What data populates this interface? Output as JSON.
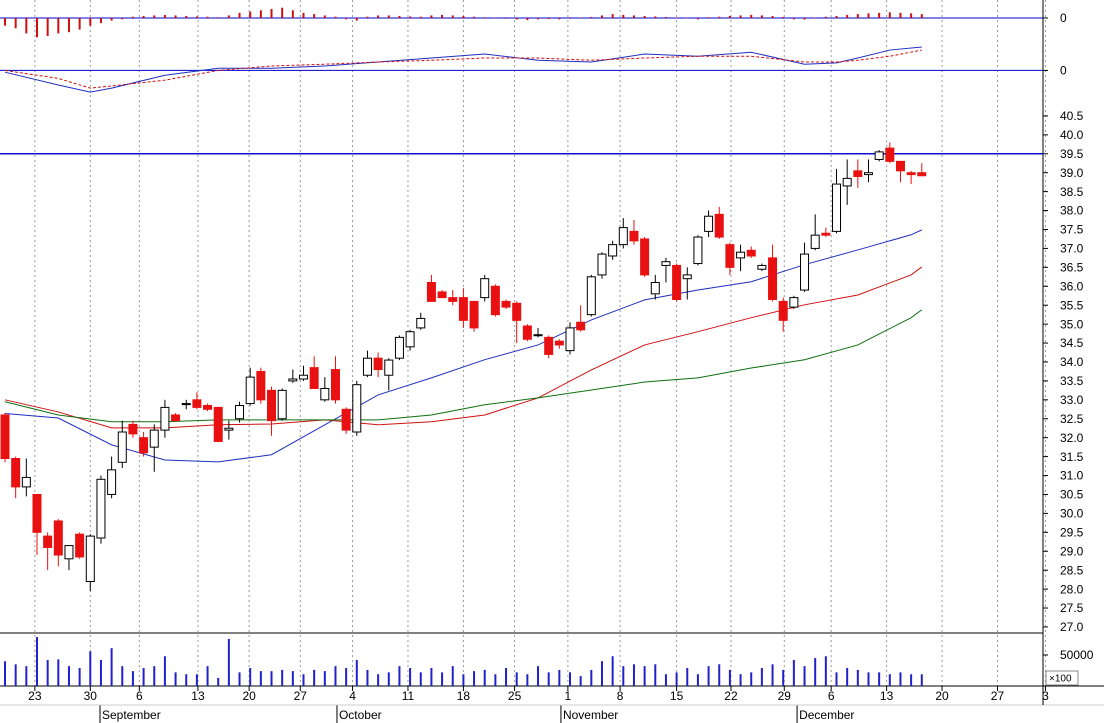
{
  "chart_data": [
    {
      "type": "bar",
      "color": "#cc1010",
      "ylim": [
        -0.7,
        0.7
      ],
      "yticks": [
        0
      ],
      "zero_line_color": "#0000cc",
      "values": [
        -0.3,
        -0.4,
        -0.6,
        -0.75,
        -0.7,
        -0.6,
        -0.55,
        -0.45,
        -0.3,
        -0.2,
        -0.1,
        -0.05,
        0.05,
        0.08,
        0.1,
        0.12,
        0.1,
        0.08,
        0.06,
        0.05,
        0.03,
        0.1,
        0.2,
        0.25,
        0.3,
        0.35,
        0.4,
        0.3,
        0.2,
        0.15,
        0.1,
        0.05,
        -0.05,
        -0.1,
        0.05,
        0.1,
        0.1,
        0.08,
        0.06,
        0.05,
        0.1,
        0.12,
        0.1,
        0.08,
        0.05,
        0.03,
        0.02,
        -0.03,
        -0.06,
        -0.08,
        -0.05,
        -0.04,
        -0.05,
        -0.03,
        0.02,
        0.04,
        0.1,
        0.15,
        0.12,
        0.1,
        0.08,
        0.06,
        0.04,
        0.02,
        -0.02,
        -0.05,
        0.03,
        0.05,
        0.08,
        0.1,
        0.12,
        0.1,
        0.08,
        0.04,
        -0.05,
        -0.06,
        0.02,
        0.05,
        0.08,
        0.12,
        0.15,
        0.18,
        0.2,
        0.22,
        0.2,
        0.18,
        0.15
      ]
    },
    {
      "type": "line",
      "ylim": [
        -0.6,
        0.8
      ],
      "yticks": [
        0
      ],
      "zero_line_color": "#0000cc",
      "series": [
        {
          "color": "#1f2fbf",
          "dash": false,
          "x": [
            0,
            5,
            8,
            10,
            15,
            20,
            25,
            30,
            35,
            40,
            45,
            50,
            55,
            60,
            65,
            70,
            75,
            78,
            80,
            83,
            86
          ],
          "values": [
            -0.04,
            -0.33,
            -0.49,
            -0.4,
            -0.11,
            0.05,
            0.05,
            0.1,
            0.19,
            0.28,
            0.37,
            0.23,
            0.19,
            0.37,
            0.32,
            0.41,
            0.14,
            0.17,
            0.28,
            0.46,
            0.53
          ]
        },
        {
          "color": "#d01010",
          "dash": true,
          "x": [
            0,
            5,
            8,
            10,
            15,
            20,
            25,
            30,
            35,
            40,
            45,
            50,
            55,
            60,
            65,
            70,
            75,
            78,
            80,
            83,
            86
          ],
          "values": [
            0,
            -0.18,
            -0.4,
            -0.35,
            -0.22,
            0,
            0.1,
            0.14,
            0.19,
            0.23,
            0.28,
            0.28,
            0.23,
            0.28,
            0.32,
            0.32,
            0.19,
            0.19,
            0.23,
            0.32,
            0.46
          ]
        }
      ]
    },
    {
      "type": "candlestick",
      "xlim": [
        -0.47,
        97.37
      ],
      "ylim": [
        26.84,
        41.0
      ],
      "yticks": [
        {
          "value": 27,
          "label": "27.0"
        },
        {
          "value": 27.5,
          "label": "27.5"
        },
        {
          "value": 28,
          "label": "28.0"
        },
        {
          "value": 28.5,
          "label": "28.5"
        },
        {
          "value": 29,
          "label": "29.0"
        },
        {
          "value": 29.5,
          "label": "29.5"
        },
        {
          "value": 30,
          "label": "30.0"
        },
        {
          "value": 30.5,
          "label": "30.5"
        },
        {
          "value": 31,
          "label": "31.0"
        },
        {
          "value": 31.5,
          "label": "31.5"
        },
        {
          "value": 32,
          "label": "32.0"
        },
        {
          "value": 32.5,
          "label": "32.5"
        },
        {
          "value": 33,
          "label": "33.0"
        },
        {
          "value": 33.5,
          "label": "33.5"
        },
        {
          "value": 34,
          "label": "34.0"
        },
        {
          "value": 34.5,
          "label": "34.5"
        },
        {
          "value": 35,
          "label": "35.0"
        },
        {
          "value": 35.5,
          "label": "35.5"
        },
        {
          "value": 36,
          "label": "36.0"
        },
        {
          "value": 36.5,
          "label": "36.5"
        },
        {
          "value": 37,
          "label": "37.0"
        },
        {
          "value": 37.5,
          "label": "37.5"
        },
        {
          "value": 38,
          "label": "38.0"
        },
        {
          "value": 38.5,
          "label": "38.5"
        },
        {
          "value": 39,
          "label": "39.0"
        },
        {
          "value": 39.5,
          "label": "39.5"
        },
        {
          "value": 40,
          "label": "40.0"
        },
        {
          "value": 40.5,
          "label": "40.5"
        }
      ],
      "up_color": "#ffffff",
      "down_color": "#e81010",
      "hline": 39.5,
      "hline_color": "#1010cc",
      "x": [
        0,
        1,
        2,
        3,
        4,
        5,
        6,
        7,
        8,
        9,
        10,
        11,
        12,
        13,
        14,
        15,
        16,
        17,
        18,
        19,
        20,
        21,
        22,
        23,
        24,
        25,
        26,
        27,
        28,
        29,
        30,
        31,
        32,
        33,
        34,
        35,
        36,
        37,
        38,
        39,
        40,
        41,
        42,
        43,
        44,
        45,
        46,
        47,
        48,
        49,
        50,
        51,
        52,
        53,
        54,
        55,
        56,
        57,
        58,
        59,
        60,
        61,
        62,
        63,
        64,
        65,
        66,
        67,
        68,
        69,
        70,
        71,
        72,
        73,
        74,
        75,
        76,
        77,
        78,
        79,
        80,
        81,
        82,
        83,
        84,
        85,
        86
      ],
      "open": [
        32.6,
        31.45,
        30.7,
        30.5,
        29.4,
        29.8,
        28.8,
        29.45,
        28.2,
        29.35,
        30.5,
        31.35,
        32.35,
        32.0,
        31.75,
        32.2,
        32.6,
        32.9,
        33.0,
        32.85,
        32.8,
        32.2,
        32.5,
        32.9,
        33.75,
        33.25,
        32.5,
        33.5,
        33.55,
        33.85,
        33.0,
        33.8,
        32.75,
        32.15,
        33.65,
        34.1,
        33.65,
        34.1,
        34.4,
        34.9,
        36.1,
        35.85,
        35.7,
        35.7,
        35.6,
        35.7,
        36.0,
        35.6,
        35.55,
        34.95,
        34.7,
        34.65,
        34.55,
        34.3,
        35.05,
        35.25,
        36.3,
        36.8,
        37.1,
        37.45,
        37.25,
        35.8,
        36.55,
        36.55,
        36.2,
        36.6,
        37.45,
        37.9,
        37.1,
        36.75,
        36.95,
        36.45,
        36.75,
        35.6,
        35.45,
        35.9,
        37.0,
        37.4,
        37.45,
        38.65,
        39.05,
        38.95,
        39.35,
        39.65,
        39.3,
        39.0,
        39.0
      ],
      "high": [
        32.65,
        31.5,
        31.45,
        30.5,
        29.5,
        29.85,
        29.15,
        29.5,
        29.45,
        31.0,
        31.5,
        32.45,
        32.45,
        32.15,
        32.35,
        33.0,
        32.65,
        33.0,
        33.2,
        32.9,
        32.8,
        32.45,
        32.95,
        33.85,
        33.85,
        33.35,
        33.3,
        33.8,
        33.9,
        34.15,
        33.6,
        34.15,
        32.8,
        33.5,
        34.3,
        34.25,
        34.1,
        34.7,
        34.85,
        35.3,
        36.3,
        35.9,
        35.9,
        35.95,
        35.6,
        36.3,
        36.05,
        35.65,
        35.6,
        35.0,
        34.9,
        34.7,
        34.6,
        35.05,
        35.5,
        36.3,
        36.9,
        37.2,
        37.8,
        37.75,
        37.3,
        36.3,
        36.75,
        36.6,
        36.5,
        37.35,
        38.0,
        38.1,
        37.15,
        37.1,
        37.05,
        36.6,
        37.1,
        35.7,
        35.75,
        37.15,
        37.9,
        37.55,
        39.1,
        39.35,
        39.35,
        39.35,
        39.6,
        39.8,
        39.3,
        39.05,
        39.25
      ],
      "low": [
        31.35,
        30.4,
        30.45,
        28.9,
        28.5,
        28.6,
        28.5,
        28.8,
        27.95,
        29.2,
        30.4,
        31.2,
        32.0,
        31.5,
        31.1,
        32.0,
        32.45,
        32.75,
        32.75,
        32.7,
        31.9,
        31.95,
        32.4,
        32.85,
        32.9,
        32.05,
        32.45,
        33.45,
        33.5,
        33.3,
        32.95,
        32.9,
        32.1,
        32.05,
        33.6,
        33.6,
        33.25,
        34.05,
        34.3,
        34.85,
        35.6,
        35.7,
        35.5,
        34.9,
        34.8,
        35.6,
        35.2,
        35.4,
        34.5,
        34.55,
        34.65,
        34.1,
        34.35,
        34.2,
        34.8,
        35.2,
        36.2,
        36.7,
        37.0,
        37.1,
        36.25,
        35.65,
        36.1,
        35.6,
        35.65,
        36.55,
        37.3,
        37.25,
        36.3,
        36.4,
        36.75,
        36.4,
        35.6,
        34.8,
        35.4,
        35.85,
        36.95,
        37.3,
        37.4,
        38.15,
        38.6,
        38.75,
        39.3,
        39.25,
        38.75,
        38.7,
        38.9
      ],
      "close": [
        31.45,
        30.7,
        30.95,
        29.5,
        29.1,
        28.9,
        29.15,
        28.85,
        29.4,
        30.9,
        31.15,
        32.15,
        32.1,
        31.6,
        32.2,
        32.8,
        32.45,
        32.9,
        32.8,
        32.75,
        31.9,
        32.25,
        32.85,
        33.6,
        33.0,
        32.45,
        33.25,
        33.55,
        33.65,
        33.3,
        33.3,
        33.0,
        32.2,
        33.4,
        34.1,
        33.8,
        34.05,
        34.65,
        34.8,
        35.15,
        35.6,
        35.7,
        35.6,
        35.1,
        34.9,
        36.2,
        35.25,
        35.45,
        35.1,
        34.6,
        34.72,
        34.2,
        34.45,
        34.9,
        34.85,
        36.25,
        36.85,
        37.1,
        37.55,
        37.2,
        36.3,
        36.1,
        36.65,
        35.65,
        36.3,
        37.3,
        37.85,
        37.3,
        36.5,
        36.9,
        36.8,
        36.55,
        35.65,
        35.1,
        35.7,
        36.85,
        37.35,
        37.35,
        38.7,
        38.85,
        38.9,
        39.0,
        39.55,
        39.3,
        39.05,
        38.95,
        38.92
      ],
      "series": [
        {
          "color": "#1f2fbf",
          "x": [
            0,
            5,
            10,
            15,
            20,
            25,
            30,
            35,
            40,
            45,
            50,
            55,
            60,
            65,
            70,
            75,
            80,
            85,
            86
          ],
          "values": [
            32.64,
            32.52,
            31.81,
            31.41,
            31.36,
            31.55,
            32.34,
            33.13,
            33.58,
            34.06,
            34.45,
            35.11,
            35.64,
            35.9,
            36.12,
            36.57,
            36.96,
            37.36,
            37.49
          ]
        },
        {
          "color": "#d01010",
          "x": [
            0,
            5,
            10,
            15,
            20,
            25,
            30,
            35,
            40,
            45,
            50,
            55,
            60,
            65,
            70,
            75,
            80,
            85,
            86
          ],
          "values": [
            33.0,
            32.68,
            32.26,
            32.26,
            32.34,
            32.36,
            32.47,
            32.34,
            32.42,
            32.6,
            33.05,
            33.79,
            34.45,
            34.8,
            35.17,
            35.51,
            35.77,
            36.3,
            36.51
          ]
        },
        {
          "color": "#107010",
          "x": [
            0,
            5,
            10,
            15,
            20,
            25,
            30,
            35,
            40,
            45,
            50,
            55,
            60,
            65,
            70,
            75,
            80,
            85,
            86
          ],
          "values": [
            32.95,
            32.6,
            32.42,
            32.42,
            32.47,
            32.47,
            32.47,
            32.47,
            32.6,
            32.87,
            33.05,
            33.26,
            33.47,
            33.58,
            33.84,
            34.06,
            34.45,
            35.17,
            35.38
          ]
        }
      ]
    },
    {
      "type": "bar",
      "color": "#2020cc",
      "ylim": [
        0,
        85500
      ],
      "yticks": [
        50000
      ],
      "unit_label": "×100",
      "grid": true,
      "values": [
        40000,
        35000,
        32000,
        79000,
        42000,
        43000,
        32000,
        29000,
        56000,
        42000,
        61000,
        32000,
        24000,
        29000,
        32000,
        48000,
        22000,
        19000,
        19000,
        32000,
        13000,
        76000,
        22000,
        29000,
        24000,
        24000,
        26000,
        24000,
        19000,
        26000,
        24000,
        32000,
        29000,
        42000,
        26000,
        19000,
        22000,
        32000,
        29000,
        22000,
        29000,
        22000,
        32000,
        19000,
        24000,
        26000,
        19000,
        29000,
        22000,
        19000,
        32000,
        22000,
        26000,
        22000,
        16000,
        26000,
        40000,
        48000,
        32000,
        35000,
        32000,
        35000,
        19000,
        22000,
        29000,
        19000,
        32000,
        35000,
        26000,
        19000,
        22000,
        29000,
        35000,
        26000,
        42000,
        32000,
        45000,
        48000,
        22000,
        29000,
        26000,
        22000,
        22000,
        19000,
        22000,
        19000,
        19000
      ],
      "xticks": [
        {
          "value": 2.8,
          "label": "23"
        },
        {
          "value": 8.0,
          "label": "30"
        },
        {
          "value": 12.6,
          "label": "6"
        },
        {
          "value": 18.1,
          "label": "13"
        },
        {
          "value": 22.9,
          "label": "20"
        },
        {
          "value": 27.7,
          "label": "27"
        },
        {
          "value": 32.6,
          "label": "4"
        },
        {
          "value": 37.8,
          "label": "11"
        },
        {
          "value": 43.0,
          "label": "18"
        },
        {
          "value": 47.8,
          "label": "25"
        },
        {
          "value": 52.8,
          "label": "1"
        },
        {
          "value": 57.7,
          "label": "8"
        },
        {
          "value": 63.0,
          "label": "15"
        },
        {
          "value": 68.1,
          "label": "22"
        },
        {
          "value": 73.1,
          "label": "29"
        },
        {
          "value": 77.5,
          "label": "6"
        },
        {
          "value": 82.7,
          "label": "13"
        },
        {
          "value": 87.9,
          "label": "20"
        },
        {
          "value": 93.1,
          "label": "27"
        },
        {
          "value": 97.6,
          "label": "3"
        }
      ],
      "months": [
        {
          "value": 8.91,
          "label": "September"
        },
        {
          "value": 31.14,
          "label": "October"
        },
        {
          "value": 52.15,
          "label": "November"
        },
        {
          "value": 74.3,
          "label": "December"
        }
      ]
    }
  ]
}
